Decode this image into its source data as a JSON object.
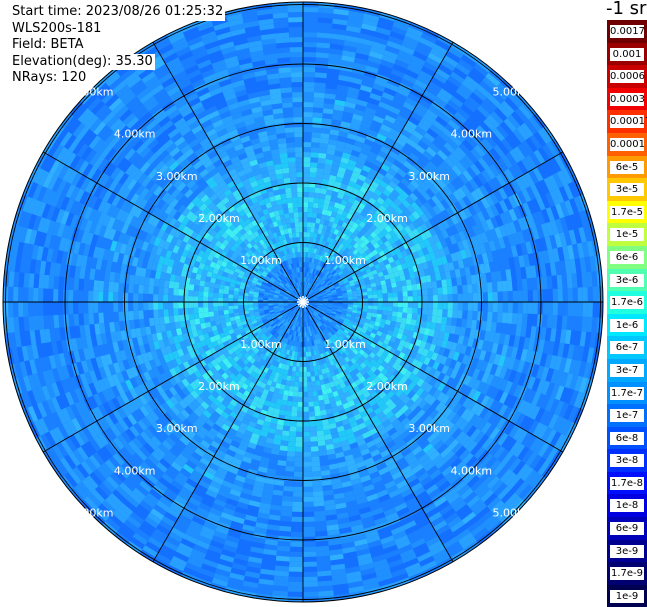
{
  "info": {
    "start_time": "Start time: 2023/08/26 01:25:32",
    "instrument": "WLS200s-181",
    "field": "Field: BETA",
    "elevation": "Elevation(deg): 35.30",
    "nrays": "NRays: 120"
  },
  "units_label": "-1 sr",
  "ring_labels": [
    "1.00km",
    "2.00km",
    "3.00km",
    "4.00km",
    "5.00km"
  ],
  "colorbar": [
    {
      "label": "0.0017",
      "color": "#700000"
    },
    {
      "label": "0.001",
      "color": "#9a0000"
    },
    {
      "label": "0.0006",
      "color": "#c80000"
    },
    {
      "label": "0.0003",
      "color": "#f00000"
    },
    {
      "label": "0.00017",
      "color": "#ff3000"
    },
    {
      "label": "0.0001",
      "color": "#ff6000"
    },
    {
      "label": "6e-5",
      "color": "#ff9a00"
    },
    {
      "label": "3e-5",
      "color": "#ffc800"
    },
    {
      "label": "1.7e-5",
      "color": "#ffff00"
    },
    {
      "label": "1e-5",
      "color": "#c0ff40"
    },
    {
      "label": "6e-6",
      "color": "#80ff80"
    },
    {
      "label": "3e-6",
      "color": "#50ffb0"
    },
    {
      "label": "1.7e-6",
      "color": "#20ffe0"
    },
    {
      "label": "1e-6",
      "color": "#00e8ff"
    },
    {
      "label": "6e-7",
      "color": "#00c8ff"
    },
    {
      "label": "3e-7",
      "color": "#00a8ff"
    },
    {
      "label": "1.7e-7",
      "color": "#0090ff"
    },
    {
      "label": "1e-7",
      "color": "#0070ff"
    },
    {
      "label": "6e-8",
      "color": "#0050ff"
    },
    {
      "label": "3e-8",
      "color": "#0030ff"
    },
    {
      "label": "1.7e-8",
      "color": "#0010ff"
    },
    {
      "label": "1e-8",
      "color": "#0000e0"
    },
    {
      "label": "6e-9",
      "color": "#0000b8"
    },
    {
      "label": "3e-9",
      "color": "#000090"
    },
    {
      "label": "1.7e-9",
      "color": "#000070"
    },
    {
      "label": "1e-9",
      "color": "#000050"
    }
  ]
}
